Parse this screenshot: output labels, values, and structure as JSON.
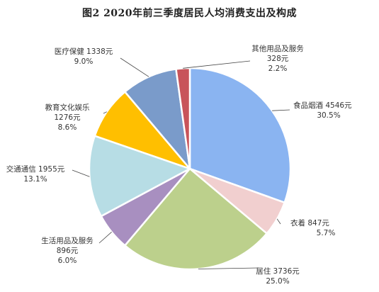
{
  "chart_data": {
    "type": "pie",
    "title": "图2    2020年前三季度居民人均消费支出及构成",
    "start": "12 o'clock",
    "direction": "clockwise",
    "slices": [
      {
        "name": "食品烟酒",
        "amount": "4546元",
        "value": 4546,
        "percent": "30.5%",
        "color": "#8AB4F1"
      },
      {
        "name": "衣着",
        "amount": "847元",
        "value": 847,
        "percent": "5.7%",
        "color": "#F1CFCF"
      },
      {
        "name": "居住",
        "amount": "3736元",
        "value": 3736,
        "percent": "25.0%",
        "color": "#BCD08C"
      },
      {
        "name": "生活用品及服务",
        "amount": "896元",
        "value": 896,
        "percent": "6.0%",
        "color": "#A88FC0"
      },
      {
        "name": "交通通信",
        "amount": "1955元",
        "value": 1955,
        "percent": "13.1%",
        "color": "#B7DDE5"
      },
      {
        "name": "教育文化娱乐",
        "amount": "1276元",
        "value": 1276,
        "percent": "8.6%",
        "color": "#FFBF00"
      },
      {
        "name": "医疗保健",
        "amount": "1338元",
        "value": 1338,
        "percent": "9.0%",
        "color": "#7A9BCA"
      },
      {
        "name": "其他用品及服务",
        "amount": "328元",
        "value": 328,
        "percent": "2.2%",
        "color": "#C8545A"
      }
    ]
  }
}
